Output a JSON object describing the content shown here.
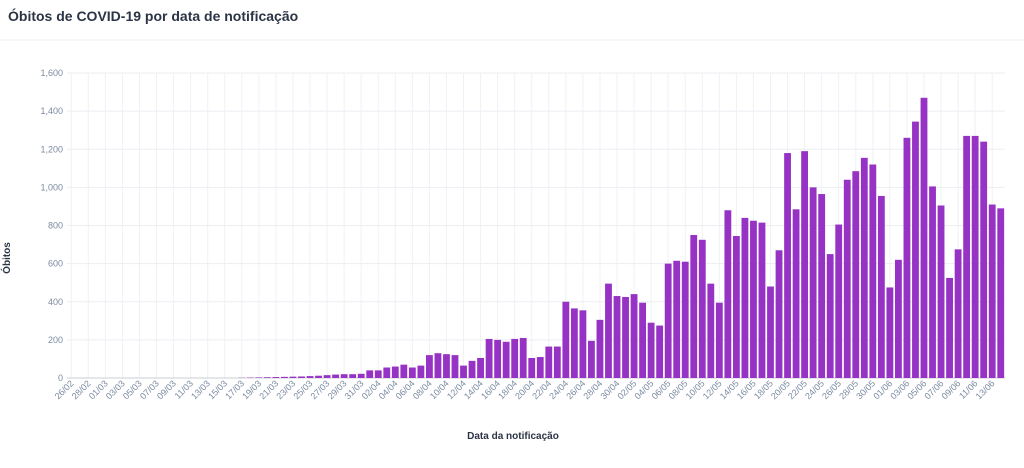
{
  "chart_data": {
    "type": "bar",
    "title": "Óbitos de COVID-19 por data de notificação",
    "x_label": "Data da notificação",
    "y_label": "Óbitos",
    "color": "#9633c4",
    "grid": true,
    "categories": [
      "26/02",
      null,
      "28/02",
      null,
      "01/03",
      null,
      "03/03",
      null,
      "05/03",
      null,
      "07/03",
      null,
      "09/03",
      null,
      "11/03",
      null,
      "13/03",
      null,
      "15/03",
      null,
      "17/03",
      null,
      "19/03",
      null,
      "21/03",
      null,
      "23/03",
      null,
      "25/03",
      null,
      "27/03",
      null,
      "29/03",
      null,
      "31/03",
      null,
      "02/04",
      null,
      "04/04",
      null,
      "06/04",
      null,
      "08/04",
      null,
      "10/04",
      null,
      "12/04",
      null,
      "14/04",
      null,
      "16/04",
      null,
      "18/04",
      null,
      "20/04",
      null,
      "22/04",
      null,
      "24/04",
      null,
      "26/04",
      null,
      "28/04",
      null,
      "30/04",
      null,
      "02/05",
      null,
      "04/05",
      null,
      "06/05",
      null,
      "08/05",
      null,
      "10/05",
      null,
      "12/05",
      null,
      "14/05",
      null,
      "16/05",
      null,
      "18/05",
      null,
      "20/05",
      null,
      "22/05",
      null,
      "24/05",
      null,
      "26/05",
      null,
      "28/05",
      null,
      "30/05",
      null,
      "01/06",
      null,
      "03/06",
      null,
      "05/06",
      null,
      "07/06",
      null,
      "09/06",
      null,
      "11/06",
      null,
      "13/06",
      null
    ],
    "values": [
      0,
      0,
      0,
      0,
      0,
      0,
      0,
      0,
      0,
      0,
      0,
      0,
      0,
      0,
      0,
      0,
      0,
      0,
      0,
      0,
      1,
      2,
      3,
      4,
      5,
      6,
      7,
      8,
      10,
      12,
      15,
      18,
      20,
      20,
      22,
      40,
      40,
      55,
      60,
      70,
      55,
      65,
      120,
      130,
      125,
      120,
      65,
      90,
      105,
      205,
      200,
      190,
      205,
      210,
      105,
      110,
      165,
      165,
      400,
      365,
      355,
      195,
      305,
      495,
      430,
      425,
      440,
      395,
      290,
      275,
      600,
      615,
      610,
      750,
      725,
      495,
      395,
      880,
      745,
      840,
      825,
      815,
      480,
      670,
      1180,
      885,
      1190,
      1000,
      965,
      650,
      805,
      1040,
      1085,
      1155,
      1120,
      955,
      475,
      620,
      1260,
      1345,
      1470,
      1005,
      905,
      525,
      675,
      1270,
      1270,
      1240,
      910,
      890
    ],
    "ylim": [
      0,
      1600
    ],
    "yticks": [
      0,
      200,
      400,
      600,
      800,
      {
        "value": 1000,
        "label": "1,000"
      },
      {
        "value": 1200,
        "label": "1,200"
      },
      {
        "value": 1400,
        "label": "1,400"
      },
      {
        "value": 1600,
        "label": "1,600"
      }
    ]
  }
}
